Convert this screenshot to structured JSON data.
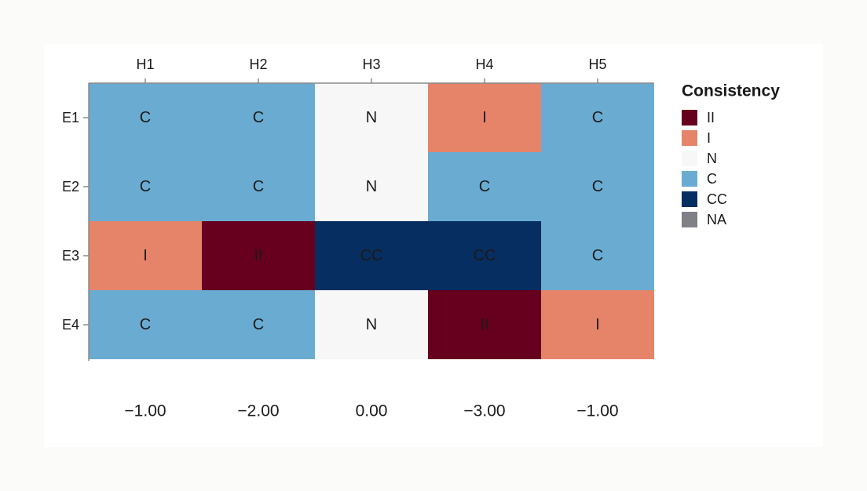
{
  "chart_data": {
    "type": "heatmap",
    "columns": [
      "H1",
      "H2",
      "H3",
      "H4",
      "H5"
    ],
    "rows": [
      "E1",
      "E2",
      "E3",
      "E4"
    ],
    "cells": [
      [
        "C",
        "C",
        "N",
        "I",
        "C"
      ],
      [
        "C",
        "C",
        "N",
        "C",
        "C"
      ],
      [
        "I",
        "II",
        "CC",
        "CC",
        "C"
      ],
      [
        "C",
        "C",
        "N",
        "II",
        "I"
      ]
    ],
    "column_totals": [
      "−1.00",
      "−2.00",
      "0.00",
      "−3.00",
      "−1.00"
    ],
    "legend": {
      "title": "Consistency",
      "placement": "right",
      "items": [
        {
          "label": "II",
          "color": "#67001f"
        },
        {
          "label": "I",
          "color": "#e6846a"
        },
        {
          "label": "N",
          "color": "#f7f7f7"
        },
        {
          "label": "C",
          "color": "#6aabd1"
        },
        {
          "label": "CC",
          "color": "#062e61"
        },
        {
          "label": "NA",
          "color": "#808087"
        }
      ]
    },
    "axis_color": "#8a8a8a"
  }
}
